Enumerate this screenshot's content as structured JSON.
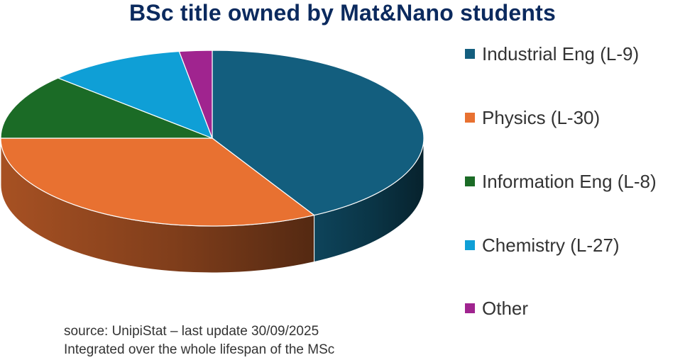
{
  "chart_data": {
    "type": "pie",
    "title": "BSc title owned by Mat&Nano students",
    "categories": [
      "Industrial Eng (L-9)",
      "Physics (L-30)",
      "Information Eng (L-8)",
      "Chemistry (L-27)",
      "Other"
    ],
    "values": [
      42,
      33,
      12,
      10.5,
      2.5
    ],
    "colors": [
      "#135e7e",
      "#e87131",
      "#1b6b26",
      "#0f9fd6",
      "#a0248f"
    ],
    "start_angle_deg": 0,
    "legend_position": "right",
    "style": "3d"
  },
  "notes": [
    "source: UnipiStat – last update 30/09/2025",
    "Integrated over the whole lifespan of the MSc"
  ]
}
